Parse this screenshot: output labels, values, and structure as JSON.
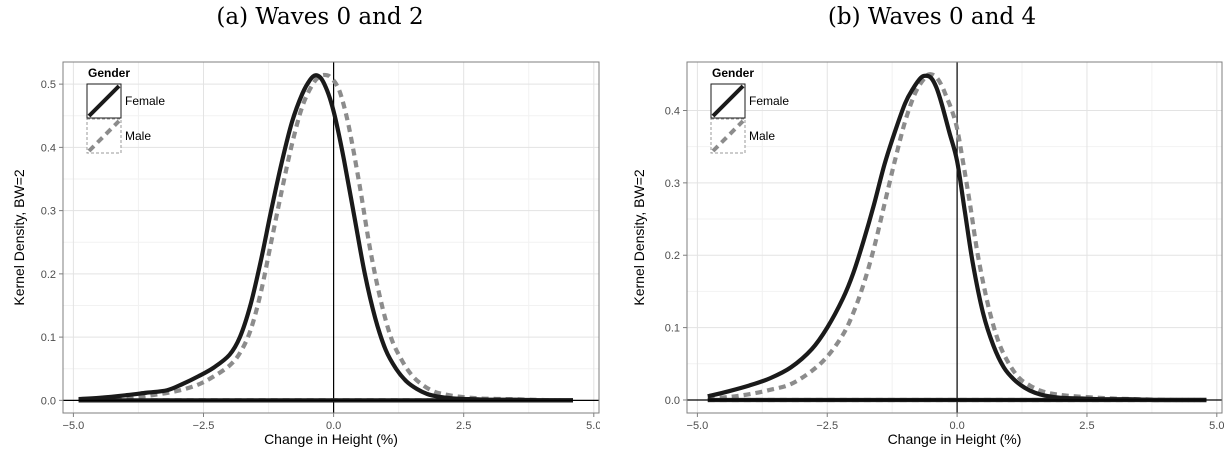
{
  "chart_data": [
    {
      "type": "line",
      "title": "(a) Waves 0 and 2",
      "xlabel": "Change in Height (%)",
      "ylabel": "Kernel Density, BW=2",
      "xlim": [
        -5.2,
        5.1
      ],
      "ylim": [
        -0.02,
        0.535
      ],
      "xticks": [
        -5.0,
        -2.5,
        0.0,
        2.5,
        5.0
      ],
      "xtick_labels": [
        "−5.0",
        "−2.5",
        "0.0",
        "2.5",
        "5.0"
      ],
      "yticks": [
        0.0,
        0.1,
        0.2,
        0.3,
        0.4,
        0.5
      ],
      "ytick_labels": [
        "0.0",
        "0.1",
        "0.2",
        "0.3",
        "0.4",
        "0.5"
      ],
      "grid": true,
      "vline_x": 0,
      "legend": {
        "title": "Gender",
        "placement": "top-left"
      },
      "series": [
        {
          "name": "Female",
          "color": "#1a1a1a",
          "style": "solid",
          "x": [
            -4.9,
            -4.5,
            -4.0,
            -3.6,
            -3.2,
            -2.9,
            -2.6,
            -2.3,
            -2.0,
            -1.8,
            -1.6,
            -1.4,
            -1.2,
            -1.0,
            -0.8,
            -0.6,
            -0.45,
            -0.35,
            -0.25,
            -0.15,
            -0.05,
            0.05,
            0.2,
            0.4,
            0.6,
            0.8,
            1.0,
            1.2,
            1.4,
            1.6,
            1.8,
            2.0,
            2.3,
            2.6,
            3.0,
            3.5,
            4.0,
            4.6
          ],
          "y": [
            0.002,
            0.004,
            0.008,
            0.012,
            0.016,
            0.026,
            0.038,
            0.052,
            0.072,
            0.1,
            0.15,
            0.22,
            0.3,
            0.375,
            0.44,
            0.485,
            0.507,
            0.514,
            0.51,
            0.495,
            0.472,
            0.44,
            0.38,
            0.29,
            0.2,
            0.13,
            0.08,
            0.05,
            0.03,
            0.018,
            0.01,
            0.006,
            0.003,
            0.002,
            0.001,
            0.001,
            0.0,
            0.0
          ]
        },
        {
          "name": "Male",
          "color": "#8c8c8c",
          "style": "dashed",
          "x": [
            -4.9,
            -4.5,
            -4.0,
            -3.5,
            -3.0,
            -2.6,
            -2.3,
            -2.0,
            -1.8,
            -1.6,
            -1.4,
            -1.2,
            -1.0,
            -0.8,
            -0.6,
            -0.4,
            -0.25,
            -0.12,
            -0.05,
            0.05,
            0.15,
            0.3,
            0.5,
            0.7,
            0.9,
            1.1,
            1.3,
            1.5,
            1.7,
            1.9,
            2.1,
            2.4,
            2.8,
            3.3,
            3.8,
            4.3,
            4.6
          ],
          "y": [
            0.001,
            0.002,
            0.004,
            0.008,
            0.015,
            0.025,
            0.038,
            0.055,
            0.075,
            0.11,
            0.17,
            0.25,
            0.33,
            0.405,
            0.465,
            0.5,
            0.513,
            0.514,
            0.51,
            0.5,
            0.48,
            0.43,
            0.34,
            0.24,
            0.16,
            0.1,
            0.065,
            0.04,
            0.025,
            0.015,
            0.01,
            0.006,
            0.003,
            0.002,
            0.001,
            0.0,
            0.0
          ]
        }
      ]
    },
    {
      "type": "line",
      "title": "(b) Waves 0 and 4",
      "xlabel": "Change in Height (%)",
      "ylabel": "Kernel Density, BW=2",
      "xlim": [
        -5.2,
        5.1
      ],
      "ylim": [
        -0.018,
        0.467
      ],
      "xticks": [
        -5.0,
        -2.5,
        0.0,
        2.5,
        5.0
      ],
      "xtick_labels": [
        "−5.0",
        "−2.5",
        "0.0",
        "2.5",
        "5.0"
      ],
      "yticks": [
        0.0,
        0.1,
        0.2,
        0.3,
        0.4
      ],
      "ytick_labels": [
        "0.0",
        "0.1",
        "0.2",
        "0.3",
        "0.4"
      ],
      "grid": true,
      "vline_x": 0,
      "legend": {
        "title": "Gender",
        "placement": "top-left"
      },
      "series": [
        {
          "name": "Female",
          "color": "#1a1a1a",
          "style": "solid",
          "x": [
            -4.8,
            -4.4,
            -4.0,
            -3.6,
            -3.2,
            -2.8,
            -2.5,
            -2.2,
            -2.0,
            -1.8,
            -1.6,
            -1.4,
            -1.2,
            -1.0,
            -0.85,
            -0.7,
            -0.6,
            -0.5,
            -0.4,
            -0.3,
            -0.15,
            0.0,
            0.15,
            0.3,
            0.5,
            0.7,
            0.9,
            1.1,
            1.3,
            1.5,
            1.7,
            2.0,
            2.4,
            2.8,
            3.3,
            3.8,
            4.3,
            4.8
          ],
          "y": [
            0.005,
            0.012,
            0.02,
            0.03,
            0.045,
            0.07,
            0.1,
            0.14,
            0.175,
            0.22,
            0.27,
            0.325,
            0.37,
            0.41,
            0.43,
            0.445,
            0.448,
            0.445,
            0.432,
            0.41,
            0.37,
            0.33,
            0.26,
            0.19,
            0.12,
            0.075,
            0.045,
            0.028,
            0.017,
            0.01,
            0.006,
            0.003,
            0.002,
            0.001,
            0.001,
            0.0,
            0.0,
            0.0
          ]
        },
        {
          "name": "Male",
          "color": "#8c8c8c",
          "style": "dashed",
          "x": [
            -4.8,
            -4.4,
            -4.0,
            -3.6,
            -3.2,
            -2.8,
            -2.5,
            -2.2,
            -2.0,
            -1.8,
            -1.6,
            -1.4,
            -1.2,
            -1.0,
            -0.8,
            -0.6,
            -0.5,
            -0.4,
            -0.3,
            -0.2,
            -0.1,
            0.0,
            0.1,
            0.25,
            0.4,
            0.6,
            0.8,
            1.0,
            1.2,
            1.4,
            1.6,
            1.8,
            2.1,
            2.5,
            3.0,
            3.5,
            4.2,
            4.8
          ],
          "y": [
            0.002,
            0.004,
            0.008,
            0.014,
            0.022,
            0.04,
            0.06,
            0.09,
            0.12,
            0.16,
            0.21,
            0.27,
            0.33,
            0.385,
            0.425,
            0.447,
            0.45,
            0.446,
            0.435,
            0.418,
            0.4,
            0.375,
            0.335,
            0.27,
            0.2,
            0.13,
            0.08,
            0.05,
            0.03,
            0.02,
            0.013,
            0.009,
            0.006,
            0.004,
            0.002,
            0.001,
            0.0,
            0.0
          ]
        }
      ]
    }
  ]
}
